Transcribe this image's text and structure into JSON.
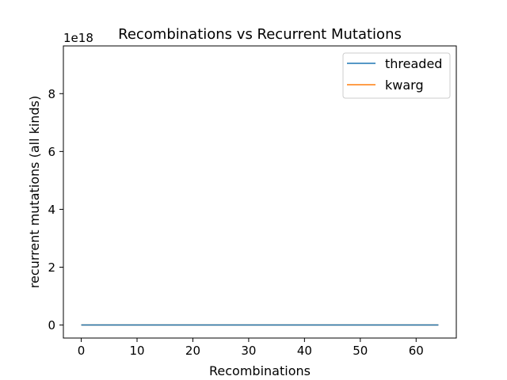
{
  "chart_data": {
    "type": "line",
    "title": "Recombinations vs Recurrent Mutations",
    "xlabel": "Recombinations",
    "ylabel": "recurrent mutations (all kinds)",
    "y_offset_text": "1e18",
    "xlim": [
      -3.2,
      67.2
    ],
    "ylim": [
      -0.45,
      9.65
    ],
    "y_scale_factor": 1e+18,
    "x_ticks": [
      0,
      10,
      20,
      30,
      40,
      50,
      60
    ],
    "y_ticks": [
      0,
      2,
      4,
      6,
      8
    ],
    "grid": false,
    "legend_position": "top-right",
    "series": [
      {
        "name": "threaded",
        "color": "#1f77b4",
        "x": [
          0,
          64
        ],
        "y": [
          0,
          0
        ]
      },
      {
        "name": "kwarg",
        "color": "#ff7f0e",
        "x": [
          0,
          64
        ],
        "y": [
          0,
          0
        ]
      }
    ]
  }
}
